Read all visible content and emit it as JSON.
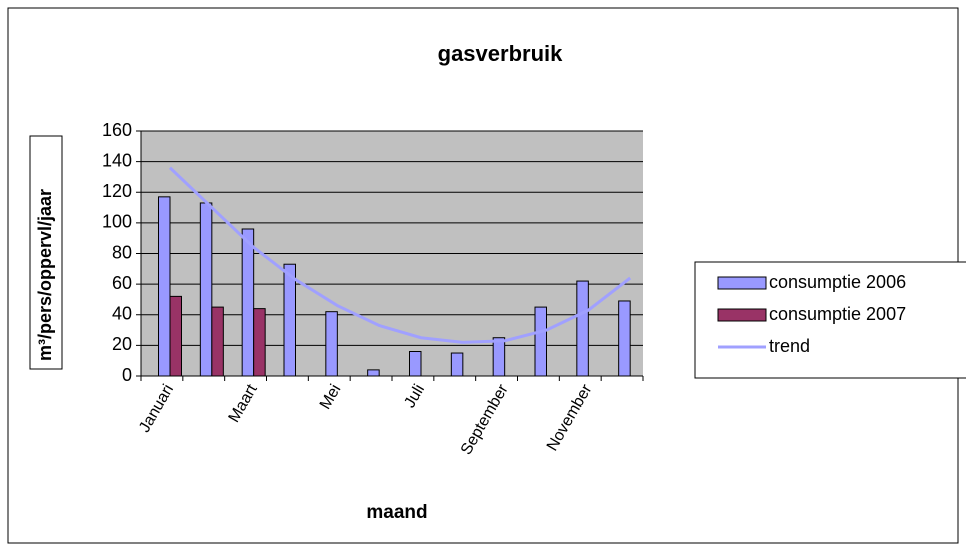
{
  "chart_data": {
    "type": "bar",
    "title": "gasverbruik",
    "x_label": "maand",
    "y_label": "m³/pers/oppervl/jaar",
    "categories": [
      "Januari",
      null,
      "Maart",
      null,
      "Mei",
      null,
      "Juli",
      null,
      "September",
      null,
      "November",
      null
    ],
    "series": [
      {
        "name": "consumptie 2006",
        "color": "#9999ff",
        "values": [
          117,
          113,
          96,
          73,
          42,
          4,
          16,
          15,
          25,
          45,
          62,
          49
        ]
      },
      {
        "name": "consumptie 2007",
        "color": "#993366",
        "values": [
          52,
          45,
          44,
          null,
          null,
          null,
          null,
          null,
          null,
          null,
          null,
          null
        ]
      },
      {
        "name": "trend",
        "type": "line",
        "color": "#a0a0ff",
        "values": [
          136,
          110,
          84,
          63,
          46,
          33,
          25,
          22,
          23,
          30,
          43,
          64
        ]
      }
    ],
    "ylim": [
      0,
      160
    ],
    "yticks": [
      0,
      20,
      40,
      60,
      80,
      100,
      120,
      140,
      160
    ],
    "grid": true,
    "legend": "right"
  }
}
